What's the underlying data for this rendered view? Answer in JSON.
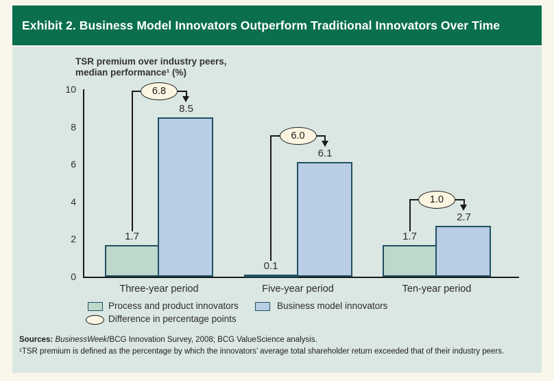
{
  "header": {
    "title": "Exhibit 2. Business Model Innovators Outperform Traditional Innovators Over Time"
  },
  "axis_title": {
    "line1": "TSR premium over industry peers,",
    "line2": "median performance¹ (%)"
  },
  "chart_data": {
    "type": "bar",
    "title": "Exhibit 2. Business Model Innovators Outperform Traditional Innovators Over Time",
    "ylabel": "TSR premium over industry peers, median performance¹ (%)",
    "xlabel": "",
    "categories": [
      "Three-year period",
      "Five-year period",
      "Ten-year period"
    ],
    "series": [
      {
        "name": "Process and product innovators",
        "values": [
          1.7,
          0.1,
          1.7
        ],
        "color": "#bed8cb"
      },
      {
        "name": "Business model innovators",
        "values": [
          8.5,
          6.1,
          2.7
        ],
        "color": "#b9cde5"
      }
    ],
    "differences": [
      6.8,
      6.0,
      1.0
    ],
    "ylim": [
      0,
      10
    ],
    "yticks": [
      0,
      2,
      4,
      6,
      8,
      10
    ],
    "grid": false,
    "legend_position": "bottom"
  },
  "legend": {
    "process": "Process and product innovators",
    "business": "Business model innovators",
    "difference": "Difference in percentage points"
  },
  "sources": {
    "label": "Sources:",
    "italic": "BusinessWeek",
    "rest": "/BCG Innovation Survey, 2008; BCG ValueScience analysis.",
    "footnote": "¹TSR premium is defined as the percentage by which the innovators’ average total shareholder return exceeded that of their industry peers."
  },
  "colors": {
    "header_green": "#0b6f4e",
    "panel_bg": "#dbe7e2",
    "page_bg": "#f9f6ec",
    "bar_border": "#1f5062",
    "oval_fill": "#fbf5e1",
    "line": "#1a1a1a"
  }
}
